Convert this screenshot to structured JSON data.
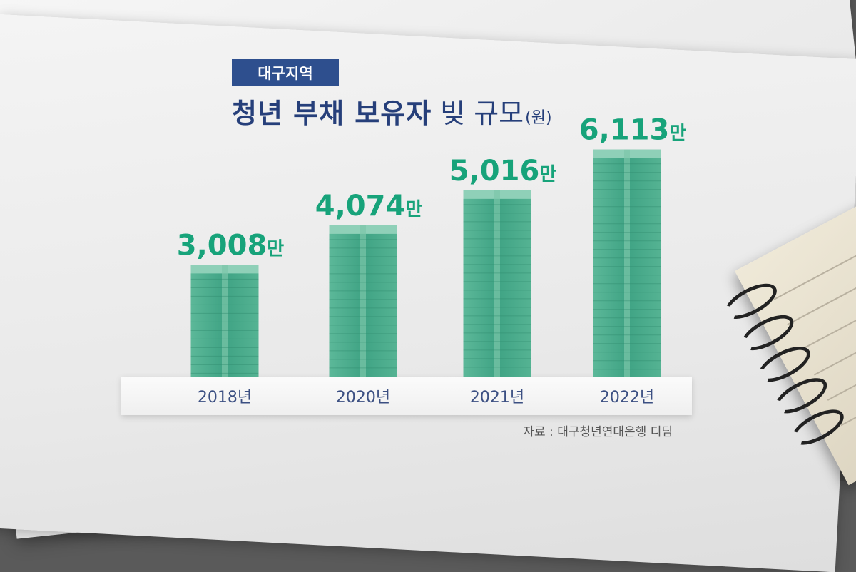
{
  "tag": "대구지역",
  "title": {
    "bold": "청년 부채 보유자",
    "light": "빚 규모",
    "unit": "(원)"
  },
  "source": "자료 : 대구청년연대은행 디딤",
  "colors": {
    "bar": "#3fa384",
    "value_text": "#17a37a",
    "axis_text": "#3b4f82",
    "tag_bg": "#2e4f8e",
    "title": "#263f7a"
  },
  "chart_data": {
    "type": "bar",
    "categories": [
      "2018년",
      "2020년",
      "2021년",
      "2022년"
    ],
    "values": [
      3008,
      4074,
      5016,
      6113
    ],
    "value_labels": [
      "3,008",
      "4,074",
      "5,016",
      "6,113"
    ],
    "value_suffix": "만",
    "title": "청년 부채 보유자 빚 규모(원)",
    "ylim": [
      0,
      6300
    ],
    "grid": false,
    "legend": "none"
  }
}
